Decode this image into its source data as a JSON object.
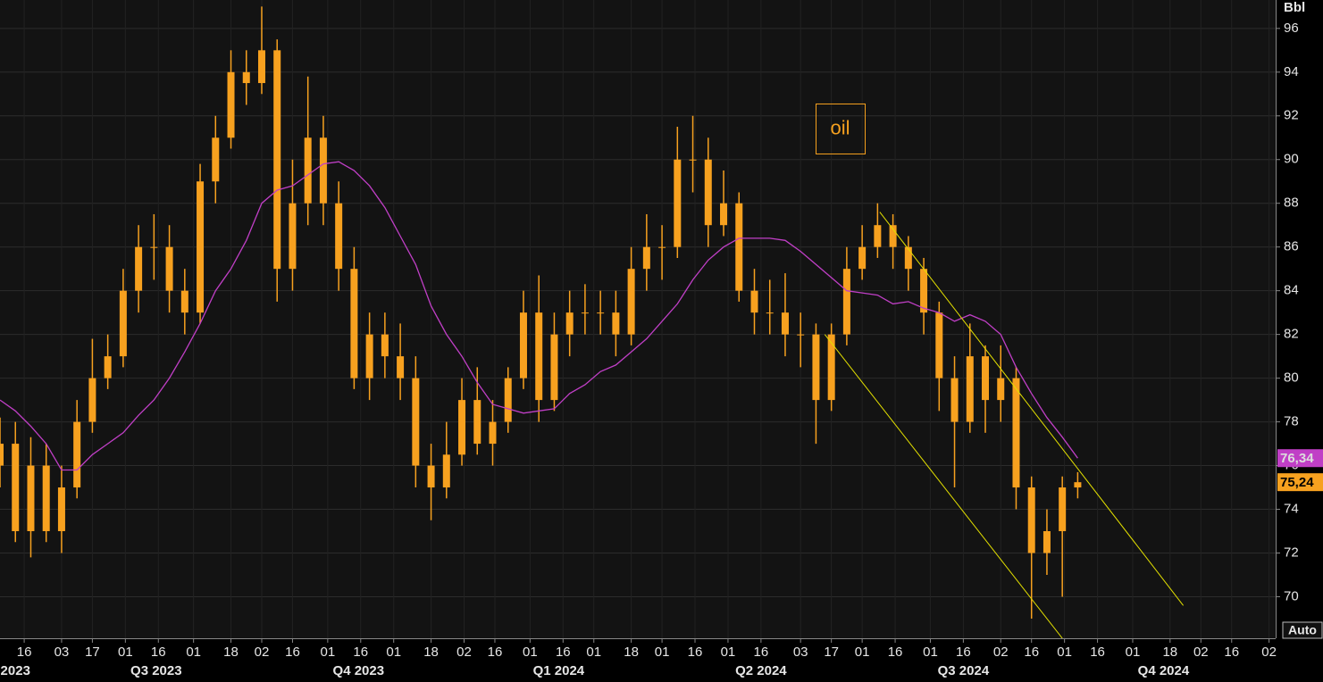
{
  "chart_data": {
    "type": "candlestick",
    "unit": "Bbl",
    "button": "Auto",
    "xlim": [
      "2023-06-05",
      "2025-01-05"
    ],
    "ylim": [
      68.1,
      97.3
    ],
    "yticks": [
      70,
      72,
      74,
      76,
      78,
      80,
      82,
      84,
      86,
      88,
      90,
      92,
      94,
      96
    ],
    "grid": true,
    "xticks": [
      {
        "value": "2023-06-16",
        "label": "16"
      },
      {
        "value": "2023-07-03",
        "label": "03"
      },
      {
        "value": "2023-07-17",
        "label": "17"
      },
      {
        "value": "2023-08-01",
        "label": "01"
      },
      {
        "value": "2023-08-16",
        "label": "16"
      },
      {
        "value": "2023-09-01",
        "label": "01"
      },
      {
        "value": "2023-09-18",
        "label": "18"
      },
      {
        "value": "2023-10-02",
        "label": "02"
      },
      {
        "value": "2023-10-16",
        "label": "16"
      },
      {
        "value": "2023-11-01",
        "label": "01"
      },
      {
        "value": "2023-11-16",
        "label": "16"
      },
      {
        "value": "2023-12-01",
        "label": "01"
      },
      {
        "value": "2023-12-18",
        "label": "18"
      },
      {
        "value": "2024-01-02",
        "label": "02"
      },
      {
        "value": "2024-01-16",
        "label": "16"
      },
      {
        "value": "2024-02-01",
        "label": "01"
      },
      {
        "value": "2024-02-16",
        "label": "16"
      },
      {
        "value": "2024-03-01",
        "label": "01"
      },
      {
        "value": "2024-03-18",
        "label": "18"
      },
      {
        "value": "2024-04-01",
        "label": "01"
      },
      {
        "value": "2024-04-16",
        "label": "16"
      },
      {
        "value": "2024-05-01",
        "label": "01"
      },
      {
        "value": "2024-05-16",
        "label": "16"
      },
      {
        "value": "2024-06-03",
        "label": "03"
      },
      {
        "value": "2024-06-17",
        "label": "17"
      },
      {
        "value": "2024-07-01",
        "label": "01"
      },
      {
        "value": "2024-07-16",
        "label": "16"
      },
      {
        "value": "2024-08-01",
        "label": "01"
      },
      {
        "value": "2024-08-16",
        "label": "16"
      },
      {
        "value": "2024-09-02",
        "label": "02"
      },
      {
        "value": "2024-09-16",
        "label": "16"
      },
      {
        "value": "2024-10-01",
        "label": "01"
      },
      {
        "value": "2024-10-16",
        "label": "16"
      },
      {
        "value": "2024-11-01",
        "label": "01"
      },
      {
        "value": "2024-11-18",
        "label": "18"
      },
      {
        "value": "2024-12-02",
        "label": "02"
      },
      {
        "value": "2024-12-16",
        "label": "16"
      },
      {
        "value": "2025-01-02",
        "label": "02"
      }
    ],
    "quarters": [
      {
        "value": "2023-06-12",
        "label": "2023"
      },
      {
        "value": "2023-08-15",
        "label": "Q3 2023"
      },
      {
        "value": "2023-11-15",
        "label": "Q4 2023"
      },
      {
        "value": "2024-02-14",
        "label": "Q1 2024"
      },
      {
        "value": "2024-05-16",
        "label": "Q2 2024"
      },
      {
        "value": "2024-08-16",
        "label": "Q3 2024"
      },
      {
        "value": "2024-11-15",
        "label": "Q4 2024"
      }
    ],
    "x": [
      "2023-06-05",
      "2023-06-12",
      "2023-06-19",
      "2023-06-26",
      "2023-07-03",
      "2023-07-10",
      "2023-07-17",
      "2023-07-24",
      "2023-07-31",
      "2023-08-07",
      "2023-08-14",
      "2023-08-21",
      "2023-08-28",
      "2023-09-04",
      "2023-09-11",
      "2023-09-18",
      "2023-09-25",
      "2023-10-02",
      "2023-10-09",
      "2023-10-16",
      "2023-10-23",
      "2023-10-30",
      "2023-11-06",
      "2023-11-13",
      "2023-11-20",
      "2023-11-27",
      "2023-12-04",
      "2023-12-11",
      "2023-12-18",
      "2023-12-25",
      "2024-01-01",
      "2024-01-08",
      "2024-01-15",
      "2024-01-22",
      "2024-01-29",
      "2024-02-05",
      "2024-02-12",
      "2024-02-19",
      "2024-02-26",
      "2024-03-04",
      "2024-03-11",
      "2024-03-18",
      "2024-03-25",
      "2024-04-01",
      "2024-04-08",
      "2024-04-15",
      "2024-04-22",
      "2024-04-29",
      "2024-05-06",
      "2024-05-13",
      "2024-05-20",
      "2024-05-27",
      "2024-06-03",
      "2024-06-10",
      "2024-06-17",
      "2024-06-24",
      "2024-07-01",
      "2024-07-08",
      "2024-07-15",
      "2024-07-22",
      "2024-07-29",
      "2024-08-05",
      "2024-08-12",
      "2024-08-19",
      "2024-08-26",
      "2024-09-02",
      "2024-09-09",
      "2024-09-16",
      "2024-09-23",
      "2024-09-30",
      "2024-10-07"
    ],
    "series": [
      {
        "color": "#f7a11f",
        "open": [
          76,
          77,
          73,
          76,
          73,
          75,
          78,
          80,
          81,
          84,
          86,
          86,
          84,
          83,
          89,
          91,
          94,
          93.5,
          95,
          85,
          88,
          91,
          88,
          85,
          80,
          82,
          81,
          80,
          76,
          75,
          76.5,
          79,
          77,
          78,
          80,
          83,
          79,
          82,
          83,
          83,
          83,
          82,
          85,
          86,
          86,
          90,
          90,
          87,
          88,
          84,
          83,
          83,
          82,
          82,
          79,
          82,
          85,
          86,
          87,
          86,
          85,
          83,
          80,
          78,
          81,
          79,
          80,
          75,
          72,
          73,
          75
        ],
        "high": [
          78.2,
          78,
          77.3,
          77,
          76,
          79,
          81.8,
          82,
          85,
          87,
          87.5,
          87,
          85,
          89.8,
          92,
          95,
          95,
          97,
          95.5,
          90,
          93.8,
          92,
          89,
          86,
          83,
          83,
          82.5,
          81,
          77,
          78,
          80,
          80.5,
          79,
          80.5,
          84,
          84.7,
          83,
          84,
          84.3,
          84,
          84,
          86,
          87.5,
          87,
          91.5,
          92,
          91,
          89.5,
          88.5,
          85,
          84.5,
          84.8,
          83,
          82.5,
          82.5,
          86,
          87,
          88,
          87.5,
          86.5,
          85.5,
          83.5,
          81,
          82.5,
          81.5,
          81.5,
          80.5,
          75.5,
          74,
          75.5,
          75.7
        ],
        "low": [
          75,
          72.5,
          71.8,
          72.5,
          72,
          74.5,
          77.5,
          79.5,
          80.5,
          83,
          84.5,
          83,
          82,
          82.5,
          88,
          90.5,
          92.5,
          93,
          83.5,
          84,
          87,
          87,
          84,
          79.5,
          79,
          80,
          79,
          75,
          73.5,
          74.5,
          76,
          76.5,
          76,
          77.5,
          79.5,
          78,
          78.5,
          81,
          82,
          82,
          81,
          81.5,
          84,
          84.5,
          85.5,
          88.5,
          86,
          86.5,
          83.5,
          82,
          82,
          81,
          80.5,
          77,
          78.5,
          81.5,
          84.5,
          85.5,
          85,
          84,
          82,
          78.5,
          75,
          77.5,
          77.5,
          78,
          74,
          69,
          71,
          70,
          74.5
        ],
        "close": [
          77,
          73,
          76,
          73,
          75,
          78,
          80,
          81,
          84,
          86,
          86,
          84,
          83,
          89,
          91,
          94,
          93.5,
          95,
          85,
          88,
          91,
          88,
          85,
          80,
          82,
          81,
          80,
          76,
          75,
          76.5,
          79,
          77,
          78,
          80,
          83,
          79,
          82,
          83,
          83,
          83,
          82,
          85,
          86,
          86,
          90,
          90,
          87,
          88,
          84,
          83,
          83,
          82,
          82,
          79,
          82,
          85,
          86,
          87,
          86,
          85,
          83,
          80,
          78,
          81,
          79,
          80,
          75,
          72,
          73,
          75,
          75.24
        ],
        "tag": {
          "value": 75.24,
          "label": "75,24"
        }
      },
      {
        "type": "line",
        "color": "#c03fc6",
        "values": [
          79,
          78.5,
          77.8,
          77,
          75.8,
          75.8,
          76.5,
          77,
          77.5,
          78.3,
          79,
          80,
          81.2,
          82.5,
          84,
          85,
          86.3,
          88,
          88.6,
          88.8,
          89.3,
          89.8,
          89.9,
          89.5,
          88.8,
          87.8,
          86.5,
          85.2,
          83.3,
          82,
          81,
          79.8,
          78.8,
          78.6,
          78.4,
          78.5,
          78.6,
          79.3,
          79.7,
          80.3,
          80.6,
          81.2,
          81.8,
          82.6,
          83.4,
          84.5,
          85.4,
          86,
          86.4,
          86.4,
          86.4,
          86.3,
          85.8,
          85.2,
          84.6,
          84,
          83.9,
          83.8,
          83.4,
          83.5,
          83.2,
          83,
          82.6,
          82.9,
          82.6,
          82,
          80.5,
          79.3,
          78.2,
          77.3,
          76.34
        ],
        "tag": {
          "value": 76.34,
          "label": "76,34"
        }
      }
    ],
    "trendlines": [
      {
        "color": "#e3e000",
        "x": [
          "2024-07-09",
          "2024-11-24"
        ],
        "y": [
          87.6,
          69.6
        ]
      },
      {
        "color": "#e3e000",
        "x": [
          "2024-06-14",
          "2024-09-30"
        ],
        "y": [
          82,
          68.1
        ]
      }
    ],
    "annotations": [
      {
        "text": "oil",
        "x": "2024-06-21",
        "y": 91.4,
        "color": "#f7a11f"
      }
    ]
  }
}
